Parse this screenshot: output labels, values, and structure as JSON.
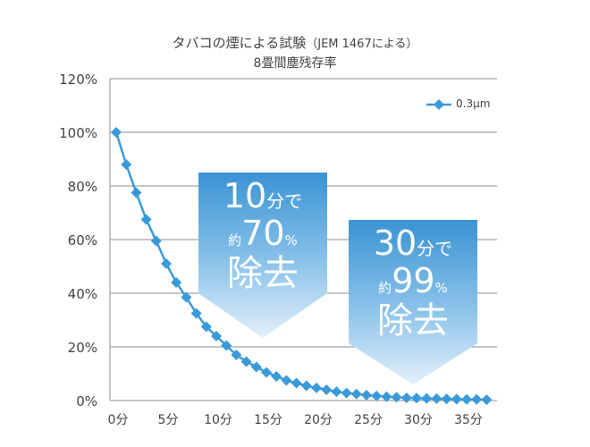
{
  "chart_data": {
    "type": "line",
    "title": "タバコの煙による試験",
    "title_note": "（JEM 1467による）",
    "subtitle": "8畳間塵残存率",
    "xlabel": "",
    "ylabel": "",
    "x_unit": "分",
    "x_ticks": [
      "0分",
      "5分",
      "10分",
      "15分",
      "20分",
      "25分",
      "30分",
      "35分"
    ],
    "y_ticks": [
      "0%",
      "20%",
      "40%",
      "60%",
      "80%",
      "100%",
      "120%"
    ],
    "xlim": [
      0,
      38
    ],
    "ylim": [
      0,
      120
    ],
    "grid": true,
    "legend_position": "top-right",
    "series": [
      {
        "name": "0.3μm",
        "color": "#3a9ad9",
        "x": [
          0,
          1,
          2,
          3,
          4,
          5,
          6,
          7,
          8,
          9,
          10,
          11,
          12,
          13,
          14,
          15,
          16,
          17,
          18,
          19,
          20,
          21,
          22,
          23,
          24,
          25,
          26,
          27,
          28,
          29,
          30,
          31,
          32,
          33,
          34,
          35,
          36,
          37
        ],
        "y": [
          100,
          88,
          77.5,
          67.5,
          59.5,
          51,
          44,
          38.5,
          32.5,
          27.5,
          24,
          20.5,
          17,
          14.5,
          12.5,
          10.5,
          9,
          7.5,
          6.5,
          5.5,
          4.7,
          4.0,
          3.3,
          2.8,
          2.4,
          2.0,
          1.7,
          1.4,
          1.2,
          1.0,
          0.9,
          0.8,
          0.7,
          0.6,
          0.5,
          0.4,
          0.4,
          0.3
        ]
      }
    ],
    "annotations": [
      {
        "num": "10",
        "unit": "分で",
        "prefix": "約",
        "pct": "70",
        "pct_unit": "%",
        "label": "除去"
      },
      {
        "num": "30",
        "unit": "分で",
        "prefix": "約",
        "pct": "99",
        "pct_unit": "%",
        "label": "除去"
      }
    ]
  },
  "colors": {
    "series": "#3a9ad9",
    "callout_top": "#3a93d4",
    "callout_bottom": "#e3f0fa",
    "grid": "#8c8c8c",
    "text": "#444444"
  }
}
